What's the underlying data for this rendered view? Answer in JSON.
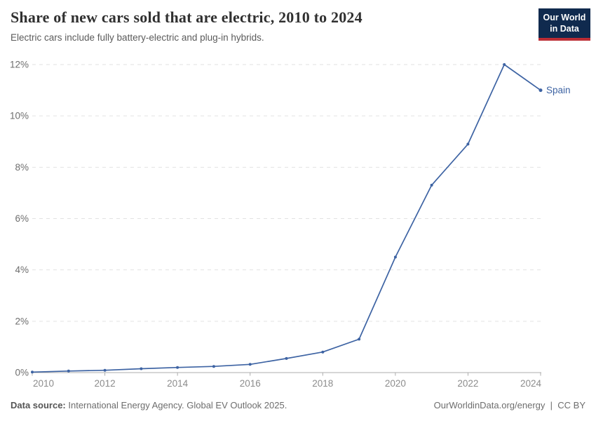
{
  "header": {
    "title": "Share of new cars sold that are electric, 2010 to 2024",
    "subtitle": "Electric cars include fully battery-electric and plug-in hybrids.",
    "logo": {
      "line1": "Our World",
      "line2": "in Data",
      "bg_color": "#102a4e",
      "accent_color": "#bc2d35"
    }
  },
  "chart_data": {
    "type": "line",
    "title": "Share of new cars sold that are electric, 2010 to 2024",
    "xlabel": "",
    "ylabel": "",
    "x": [
      2010,
      2011,
      2012,
      2013,
      2014,
      2015,
      2016,
      2017,
      2018,
      2019,
      2020,
      2021,
      2022,
      2023,
      2024
    ],
    "series": [
      {
        "name": "Spain",
        "color": "#3d63a3",
        "values": [
          0.02,
          0.06,
          0.09,
          0.15,
          0.2,
          0.24,
          0.32,
          0.55,
          0.8,
          1.3,
          4.5,
          7.3,
          8.9,
          12.0,
          11.0
        ]
      }
    ],
    "ylim": [
      0,
      12
    ],
    "yticks": [
      0,
      2,
      4,
      6,
      8,
      10,
      12
    ],
    "ytick_labels": [
      "0%",
      "2%",
      "4%",
      "6%",
      "8%",
      "10%",
      "12%"
    ],
    "xticks": [
      2010,
      2012,
      2014,
      2016,
      2018,
      2020,
      2022,
      2024
    ],
    "xtick_labels": [
      "2010",
      "2012",
      "2014",
      "2016",
      "2018",
      "2020",
      "2022",
      "2024"
    ],
    "grid": "horizontal-dashed",
    "legend": "series-end-label"
  },
  "footer": {
    "source_label": "Data source:",
    "source_text": "International Energy Agency. Global EV Outlook 2025.",
    "url": "OurWorldinData.org/energy",
    "separator": " | ",
    "license": "CC BY"
  }
}
